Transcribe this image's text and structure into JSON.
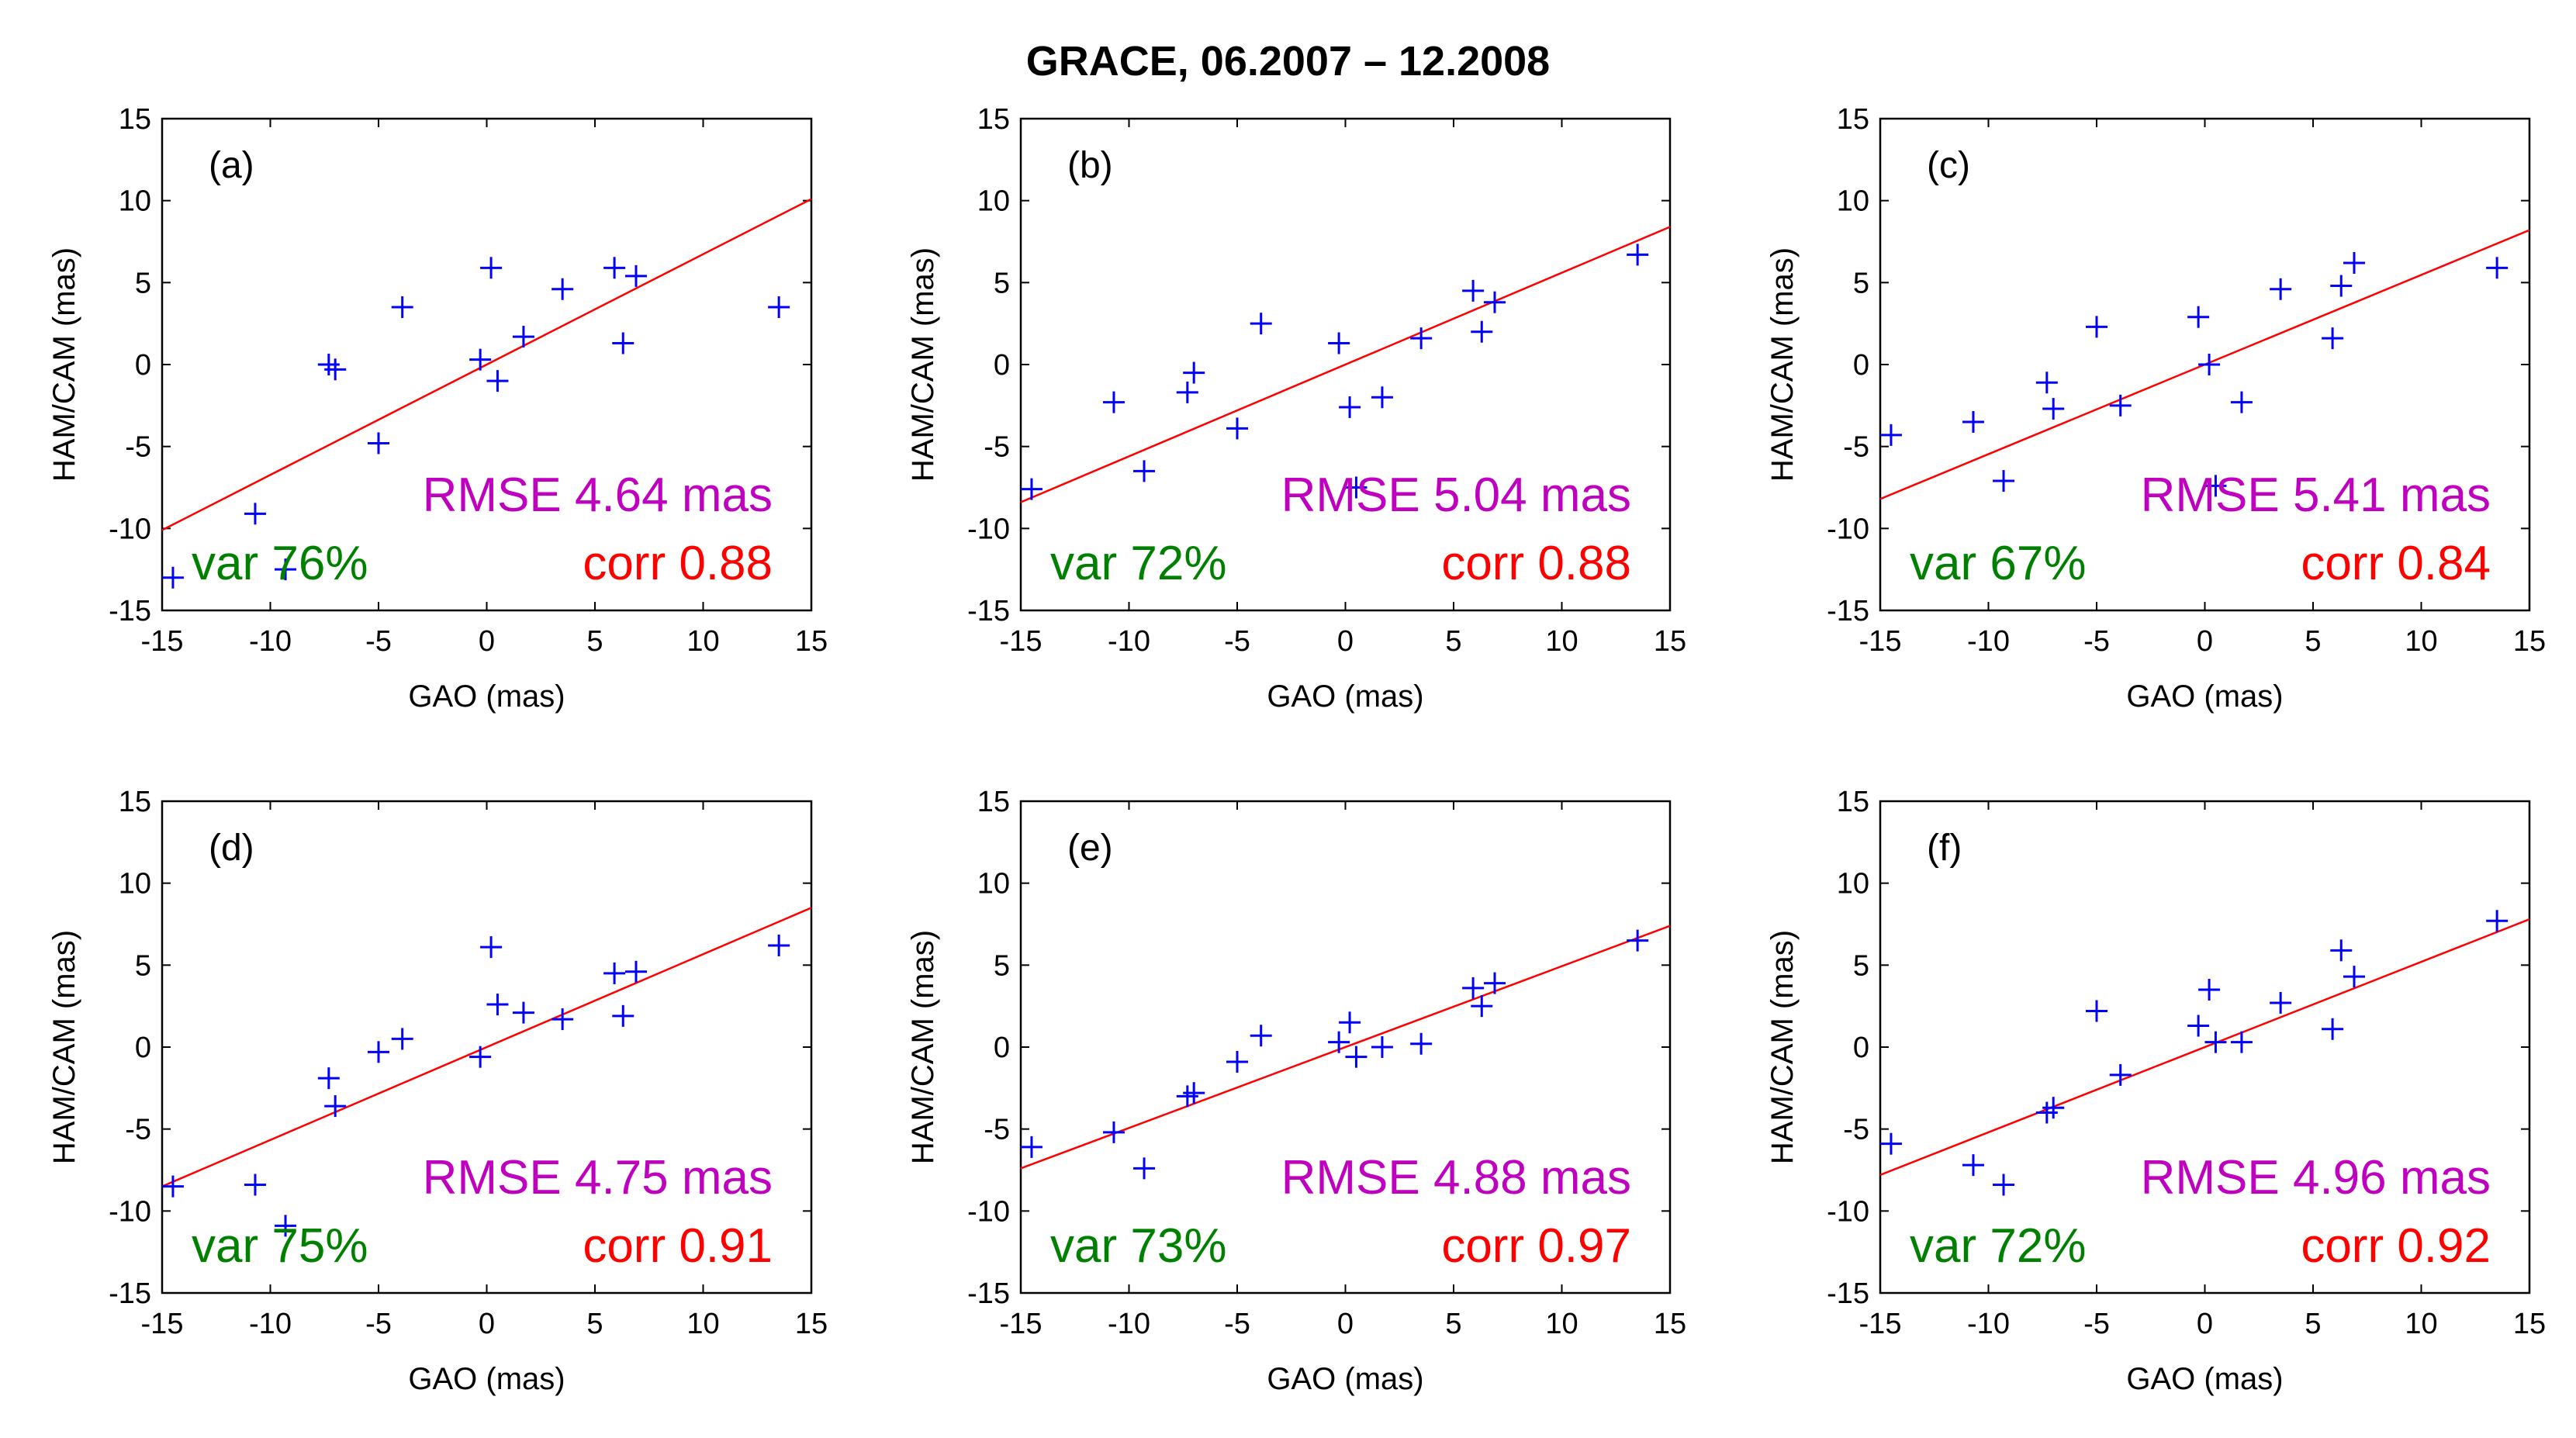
{
  "title": "GRACE, 06.2007 – 12.2008",
  "colors": {
    "points": "#0000ff",
    "fit_line": "#ff0000",
    "rmse_text": "#bf00bf",
    "var_text": "#008000",
    "corr_text": "#ff0000",
    "axes": "#000000"
  },
  "chart_data": [
    {
      "type": "scatter",
      "panel": "(a)",
      "xlabel": "GAO (mas)",
      "ylabel": "HAM/CAM (mas)",
      "xlim": [
        -15,
        15
      ],
      "ylim": [
        -15,
        15
      ],
      "xticks": [
        -15,
        -10,
        -5,
        0,
        5,
        10,
        15
      ],
      "yticks": [
        -15,
        -10,
        -5,
        0,
        5,
        10,
        15
      ],
      "points": [
        [
          -14.5,
          -13.0
        ],
        [
          -10.7,
          -9.1
        ],
        [
          -9.3,
          -12.5
        ],
        [
          -7.3,
          0.0
        ],
        [
          -7.0,
          -0.3
        ],
        [
          -5.0,
          -4.8
        ],
        [
          -3.9,
          3.5
        ],
        [
          -0.3,
          0.3
        ],
        [
          0.2,
          5.9
        ],
        [
          0.5,
          -1.0
        ],
        [
          1.7,
          1.7
        ],
        [
          3.5,
          4.6
        ],
        [
          5.9,
          5.9
        ],
        [
          6.3,
          1.3
        ],
        [
          6.9,
          5.4
        ],
        [
          13.5,
          3.5
        ]
      ],
      "fit_line": [
        [
          -15,
          -10.1
        ],
        [
          15,
          10.1
        ]
      ],
      "rmse": "RMSE 4.64 mas",
      "var": "var 76%",
      "corr": "corr 0.88"
    },
    {
      "type": "scatter",
      "panel": "(b)",
      "xlabel": "GAO (mas)",
      "ylabel": "HAM/CAM (mas)",
      "xlim": [
        -15,
        15
      ],
      "ylim": [
        -15,
        15
      ],
      "xticks": [
        -15,
        -10,
        -5,
        0,
        5,
        10,
        15
      ],
      "yticks": [
        -15,
        -10,
        -5,
        0,
        5,
        10,
        15
      ],
      "points": [
        [
          -14.5,
          -7.6
        ],
        [
          -10.7,
          -2.3
        ],
        [
          -9.3,
          -6.5
        ],
        [
          -7.3,
          -1.7
        ],
        [
          -7.0,
          -0.5
        ],
        [
          -5.0,
          -3.9
        ],
        [
          -3.9,
          2.5
        ],
        [
          -0.3,
          1.3
        ],
        [
          0.2,
          -2.6
        ],
        [
          0.5,
          -7.5
        ],
        [
          1.7,
          -2.0
        ],
        [
          3.5,
          1.6
        ],
        [
          5.9,
          4.5
        ],
        [
          6.3,
          2.0
        ],
        [
          6.9,
          3.8
        ],
        [
          13.5,
          6.7
        ]
      ],
      "fit_line": [
        [
          -15,
          -8.4
        ],
        [
          15,
          8.4
        ]
      ],
      "rmse": "RMSE 5.04 mas",
      "var": "var 72%",
      "corr": "corr 0.88"
    },
    {
      "type": "scatter",
      "panel": "(c)",
      "xlabel": "GAO (mas)",
      "ylabel": "HAM/CAM (mas)",
      "xlim": [
        -15,
        15
      ],
      "ylim": [
        -15,
        15
      ],
      "xticks": [
        -15,
        -10,
        -5,
        0,
        5,
        10,
        15
      ],
      "yticks": [
        -15,
        -10,
        -5,
        0,
        5,
        10,
        15
      ],
      "points": [
        [
          -14.5,
          -4.3
        ],
        [
          -10.7,
          -3.5
        ],
        [
          -9.3,
          -7.1
        ],
        [
          -7.3,
          -1.1
        ],
        [
          -7.0,
          -2.7
        ],
        [
          -5.0,
          2.3
        ],
        [
          -3.9,
          -2.5
        ],
        [
          -0.3,
          2.9
        ],
        [
          0.2,
          0.0
        ],
        [
          0.5,
          -7.4
        ],
        [
          1.7,
          -2.3
        ],
        [
          3.5,
          4.6
        ],
        [
          5.9,
          1.6
        ],
        [
          6.3,
          4.8
        ],
        [
          6.9,
          6.2
        ],
        [
          13.5,
          5.9
        ]
      ],
      "fit_line": [
        [
          -15,
          -8.2
        ],
        [
          15,
          8.2
        ]
      ],
      "rmse": "RMSE 5.41 mas",
      "var": "var 67%",
      "corr": "corr 0.84"
    },
    {
      "type": "scatter",
      "panel": "(d)",
      "xlabel": "GAO (mas)",
      "ylabel": "HAM/CAM (mas)",
      "xlim": [
        -15,
        15
      ],
      "ylim": [
        -15,
        15
      ],
      "xticks": [
        -15,
        -10,
        -5,
        0,
        5,
        10,
        15
      ],
      "yticks": [
        -15,
        -10,
        -5,
        0,
        5,
        10,
        15
      ],
      "points": [
        [
          -14.5,
          -8.5
        ],
        [
          -10.7,
          -8.4
        ],
        [
          -9.3,
          -10.9
        ],
        [
          -7.3,
          -1.9
        ],
        [
          -7.0,
          -3.6
        ],
        [
          -5.0,
          -0.3
        ],
        [
          -3.9,
          0.5
        ],
        [
          -0.3,
          -0.6
        ],
        [
          0.2,
          6.1
        ],
        [
          0.5,
          2.6
        ],
        [
          1.7,
          2.1
        ],
        [
          3.5,
          1.7
        ],
        [
          5.9,
          4.5
        ],
        [
          6.3,
          1.9
        ],
        [
          6.9,
          4.6
        ],
        [
          13.5,
          6.2
        ]
      ],
      "fit_line": [
        [
          -15,
          -8.5
        ],
        [
          15,
          8.5
        ]
      ],
      "rmse": "RMSE 4.75 mas",
      "var": "var 75%",
      "corr": "corr 0.91"
    },
    {
      "type": "scatter",
      "panel": "(e)",
      "xlabel": "GAO (mas)",
      "ylabel": "HAM/CAM (mas)",
      "xlim": [
        -15,
        15
      ],
      "ylim": [
        -15,
        15
      ],
      "xticks": [
        -15,
        -10,
        -5,
        0,
        5,
        10,
        15
      ],
      "yticks": [
        -15,
        -10,
        -5,
        0,
        5,
        10,
        15
      ],
      "points": [
        [
          -14.5,
          -6.1
        ],
        [
          -10.7,
          -5.2
        ],
        [
          -9.3,
          -7.4
        ],
        [
          -7.3,
          -3.0
        ],
        [
          -7.0,
          -2.8
        ],
        [
          -5.0,
          -0.9
        ],
        [
          -3.9,
          0.7
        ],
        [
          -0.3,
          0.3
        ],
        [
          0.2,
          1.5
        ],
        [
          0.5,
          -0.6
        ],
        [
          1.7,
          0.0
        ],
        [
          3.5,
          0.2
        ],
        [
          5.9,
          3.6
        ],
        [
          6.3,
          2.5
        ],
        [
          6.9,
          3.9
        ],
        [
          13.5,
          6.5
        ]
      ],
      "fit_line": [
        [
          -15,
          -7.4
        ],
        [
          15,
          7.4
        ]
      ],
      "rmse": "RMSE 4.88 mas",
      "var": "var 73%",
      "corr": "corr 0.97"
    },
    {
      "type": "scatter",
      "panel": "(f)",
      "xlabel": "GAO (mas)",
      "ylabel": "HAM/CAM (mas)",
      "xlim": [
        -15,
        15
      ],
      "ylim": [
        -15,
        15
      ],
      "xticks": [
        -15,
        -10,
        -5,
        0,
        5,
        10,
        15
      ],
      "yticks": [
        -15,
        -10,
        -5,
        0,
        5,
        10,
        15
      ],
      "points": [
        [
          -14.5,
          -5.9
        ],
        [
          -10.7,
          -7.2
        ],
        [
          -9.3,
          -8.4
        ],
        [
          -7.3,
          -4.0
        ],
        [
          -7.0,
          -3.7
        ],
        [
          -5.0,
          2.2
        ],
        [
          -3.9,
          -1.7
        ],
        [
          -0.3,
          1.3
        ],
        [
          0.2,
          3.5
        ],
        [
          0.5,
          0.3
        ],
        [
          1.7,
          0.3
        ],
        [
          3.5,
          2.7
        ],
        [
          5.9,
          1.1
        ],
        [
          6.3,
          5.9
        ],
        [
          6.9,
          4.3
        ],
        [
          13.5,
          7.7
        ]
      ],
      "fit_line": [
        [
          -15,
          -7.8
        ],
        [
          15,
          7.8
        ]
      ],
      "rmse": "RMSE 4.96 mas",
      "var": "var 72%",
      "corr": "corr 0.92"
    }
  ]
}
